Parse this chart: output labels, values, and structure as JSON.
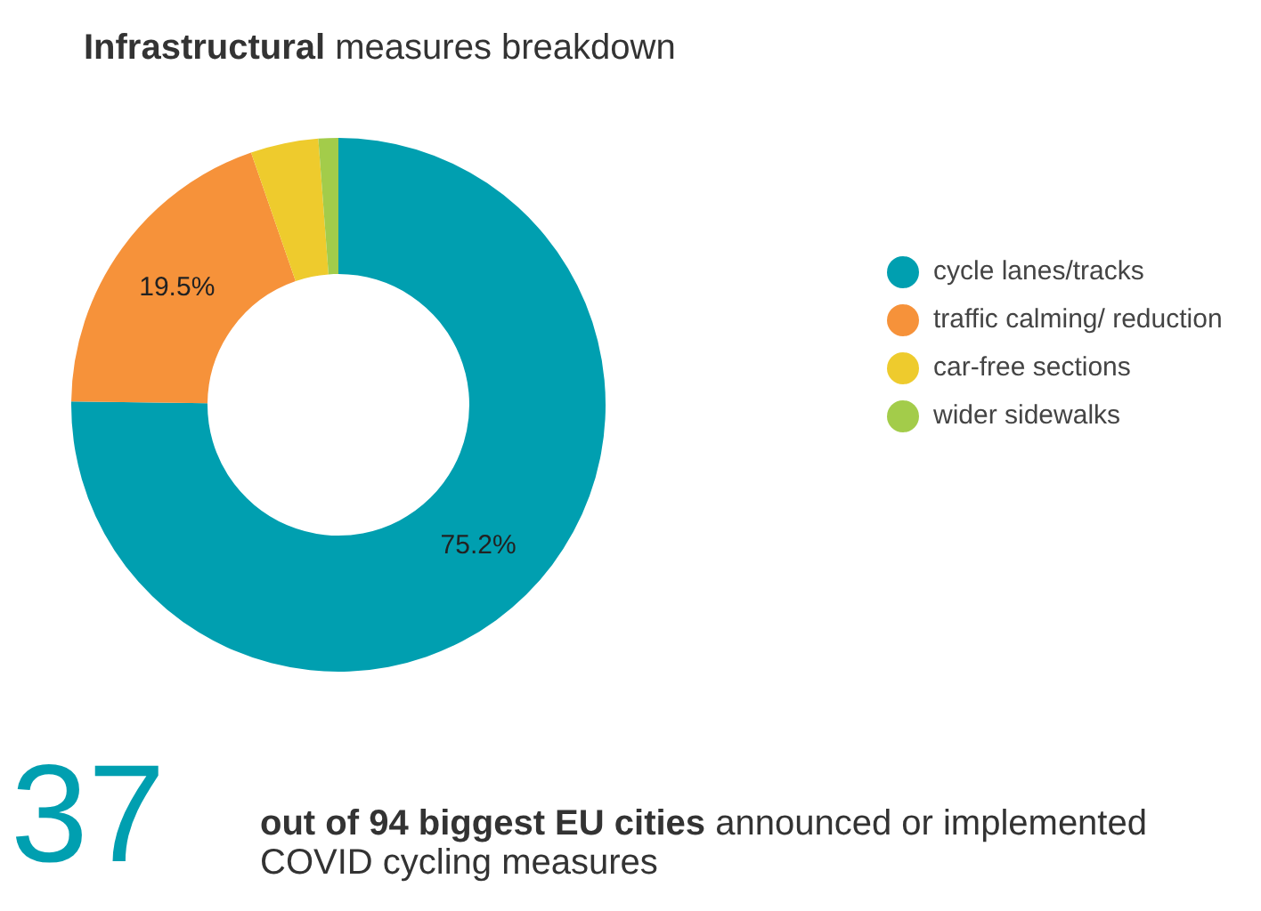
{
  "chart_data": {
    "type": "donut",
    "title": "Infrastructural measures breakdown",
    "categories": [
      "cycle lanes/tracks",
      "traffic calming/ reduction",
      "car-free sections",
      "wider sidewalks"
    ],
    "values": [
      75.2,
      19.5,
      4.1,
      1.2
    ],
    "colors": [
      "#009fb0",
      "#f6923a",
      "#eecb2d",
      "#a3cc4a"
    ],
    "value_labels": [
      "75.2%",
      "19.5%",
      null,
      null
    ],
    "legend": "right",
    "annotations": [
      "37",
      "out of 94 biggest EU cities",
      "announced or implemented COVID cycling measures"
    ]
  }
}
